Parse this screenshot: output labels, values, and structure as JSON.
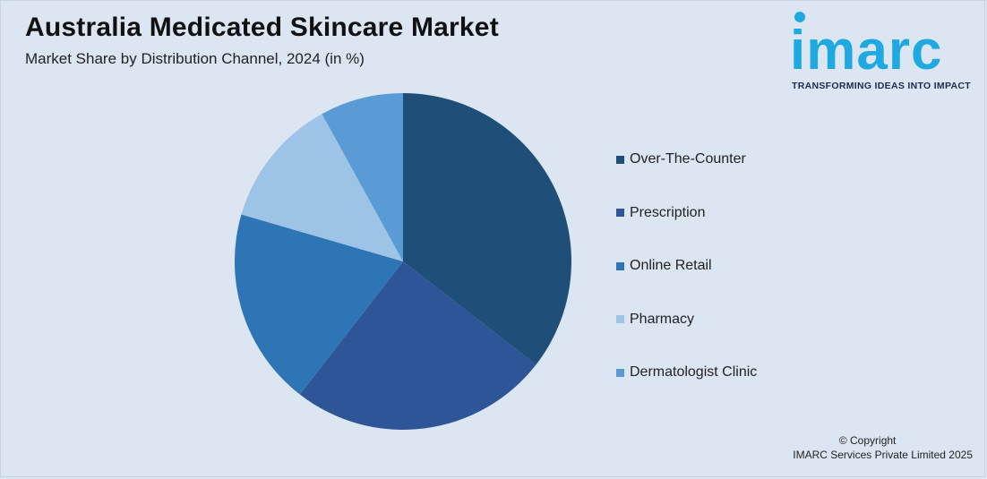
{
  "header": {
    "title": "Australia Medicated Skincare Market",
    "subtitle": "Market Share by Distribution Channel, 2024 (in %)"
  },
  "logo": {
    "wordmark": "imarc",
    "tagline": "TRANSFORMING IDEAS INTO IMPACT",
    "color": "#1fa9e1"
  },
  "chart_data": {
    "type": "pie",
    "title": "Australia Medicated Skincare Market",
    "subtitle": "Market Share by Distribution Channel, 2024 (in %)",
    "categories": [
      "Over-The-Counter",
      "Prescription",
      "Online Retail",
      "Pharmacy",
      "Dermatologist Clinic"
    ],
    "values": [
      35.5,
      25,
      19,
      12.5,
      8
    ],
    "colors": [
      "#1f4e79",
      "#2e5597",
      "#2e75b6",
      "#9dc3e6",
      "#5b9bd5"
    ],
    "start_angle_deg": 0,
    "direction": "clockwise",
    "legend_position": "right"
  },
  "footer": {
    "copyright_line1": "© Copyright",
    "copyright_line2": "IMARC Services Private Limited 2025"
  }
}
